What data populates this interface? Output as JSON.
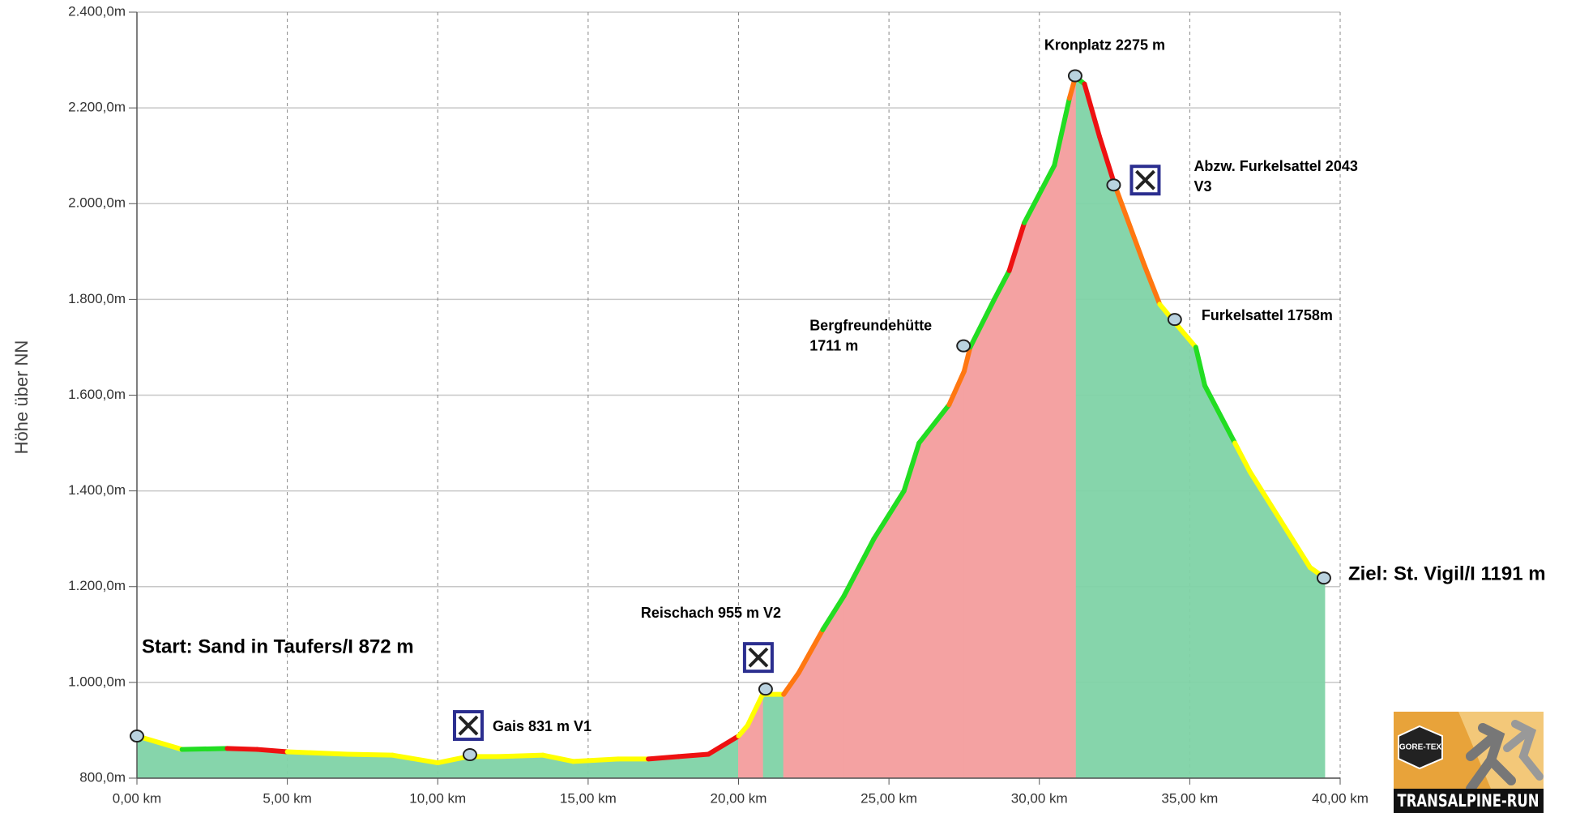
{
  "chart_data": {
    "type": "area",
    "y_label": "Höhe über NN",
    "xlim": [
      0,
      40
    ],
    "ylim": [
      800,
      2400
    ],
    "xticks": [
      {
        "value": 0,
        "label": "0,00 km"
      },
      {
        "value": 5,
        "label": "5,00 km"
      },
      {
        "value": 10,
        "label": "10,00 km"
      },
      {
        "value": 15,
        "label": "15,00 km"
      },
      {
        "value": 20,
        "label": "20,00 km"
      },
      {
        "value": 25,
        "label": "25,00 km"
      },
      {
        "value": 30,
        "label": "30,00 km"
      },
      {
        "value": 35,
        "label": "35,00 km"
      },
      {
        "value": 40,
        "label": "40,00 km"
      }
    ],
    "yticks": [
      {
        "value": 800,
        "label": "800,0m"
      },
      {
        "value": 1000,
        "label": "1.000,0m"
      },
      {
        "value": 1200,
        "label": "1.200,0m"
      },
      {
        "value": 1400,
        "label": "1.400,0m"
      },
      {
        "value": 1600,
        "label": "1.600,0m"
      },
      {
        "value": 1800,
        "label": "1.800,0m"
      },
      {
        "value": 2000,
        "label": "2.000,0m"
      },
      {
        "value": 2200,
        "label": "2.200,0m"
      },
      {
        "value": 2400,
        "label": "2.400,0m"
      }
    ],
    "grid": true,
    "series": [
      {
        "x": [
          0,
          1.5,
          3,
          4,
          5,
          7,
          8.5,
          10,
          11,
          12,
          13.5,
          14.5,
          16,
          17,
          18,
          19,
          20,
          20.3,
          20.8,
          21.5,
          22,
          22.8,
          23.5,
          24.5,
          25.5,
          26,
          27,
          27.5,
          27.7,
          28.5,
          29,
          29.5,
          30.5,
          31,
          31.2,
          31.5,
          32,
          32.5,
          33.5,
          34,
          34.5,
          35.2,
          35.5,
          36.5,
          37,
          38,
          39,
          39.5
        ],
        "values": [
          888,
          860,
          862,
          860,
          855,
          850,
          848,
          832,
          845,
          845,
          848,
          835,
          840,
          840,
          845,
          850,
          888,
          910,
          975,
          975,
          1020,
          1110,
          1180,
          1300,
          1400,
          1500,
          1580,
          1650,
          1700,
          1800,
          1860,
          1960,
          2080,
          2220,
          2265,
          2250,
          2140,
          2040,
          1870,
          1790,
          1752,
          1700,
          1620,
          1500,
          1440,
          1340,
          1240,
          1218
        ],
        "segment_colors": [
          "#ffff00",
          "#22dd22",
          "#ee1111",
          "#ee1111",
          "#ffff00",
          "#ffff00",
          "#ffff00",
          "#ffff00",
          "#ffff00",
          "#ffff00",
          "#ffff00",
          "#ffff00",
          "#ffff00",
          "#ee1111",
          "#ee1111",
          "#ee1111",
          "#ffff00",
          "#ffff00",
          "#ffff00",
          "#ff7711",
          "#ff7711",
          "#22dd22",
          "#22dd22",
          "#22dd22",
          "#22dd22",
          "#22dd22",
          "#ff7711",
          "#ff7711",
          "#22dd22",
          "#22dd22",
          "#ee1111",
          "#22dd22",
          "#22dd22",
          "#ff7711",
          "#22dd22",
          "#ee1111",
          "#ee1111",
          "#ff7711",
          "#ff7711",
          "#ffff00",
          "#ffff00",
          "#22dd22",
          "#22dd22",
          "#ffff00",
          "#ffff00",
          "#ffff00",
          "#ffff00"
        ],
        "fill_color": "#7fd3a6",
        "climb_fill_color": "#f4a2a2"
      }
    ],
    "annotations": [
      {
        "lines": [
          "Start: Sand in Taufers/I   872 m"
        ],
        "x": 0,
        "y": 888
      },
      {
        "lines": [
          "Gais 831 m V1"
        ],
        "x": 11.07,
        "y": 849
      },
      {
        "lines": [
          "Reischach  955 m V2"
        ],
        "x": 20.9,
        "y": 986
      },
      {
        "lines": [
          "Bergfreundehütte",
          "1711 m"
        ],
        "x": 27.48,
        "y": 1703
      },
      {
        "lines": [
          "Kronplatz 2275 m"
        ],
        "x": 31.19,
        "y": 2267
      },
      {
        "lines": [
          "Abzw. Furkelsattel 2043",
          "V3"
        ],
        "x": 32.47,
        "y": 2039
      },
      {
        "lines": [
          "Furkelsattel   1758m"
        ],
        "x": 34.5,
        "y": 1758
      },
      {
        "lines": [
          "Ziel: St. Vigil/I  1191 m"
        ],
        "x": 39.46,
        "y": 1218
      }
    ],
    "logo": {
      "text": "TRANSALPINE-RUN",
      "badge": "GORE-TEX"
    }
  }
}
